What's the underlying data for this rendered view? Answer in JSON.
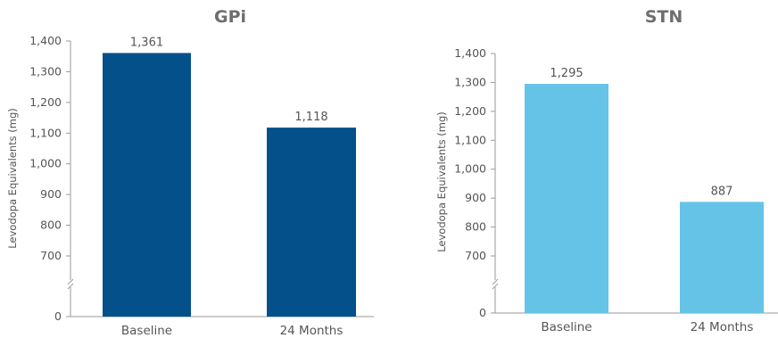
{
  "chart_data": [
    {
      "type": "bar",
      "title": "GPi",
      "ylabel": "Levodopa Equivalents (mg)",
      "categories": [
        "Baseline",
        "24 Months"
      ],
      "values": [
        1361,
        1118
      ],
      "value_labels": [
        "1,361",
        "1,118"
      ],
      "ylim": [
        600,
        1400
      ],
      "yticks": [
        700,
        800,
        900,
        1000,
        1100,
        1200,
        1300,
        1400
      ],
      "ytick_labels": [
        "700",
        "800",
        "900",
        "1,000",
        "1,100",
        "1,200",
        "1,300",
        "1,400"
      ],
      "axis_break": true,
      "zero_label": "0",
      "bar_color": "#03508b",
      "grid": false
    },
    {
      "type": "bar",
      "title": "STN",
      "ylabel": "Levodopa Equivalents (mg)",
      "categories": [
        "Baseline",
        "24 Months"
      ],
      "values": [
        1295,
        887
      ],
      "value_labels": [
        "1,295",
        "887"
      ],
      "ylim": [
        600,
        1400
      ],
      "yticks": [
        700,
        800,
        900,
        1000,
        1100,
        1200,
        1300,
        1400
      ],
      "ytick_labels": [
        "700",
        "800",
        "900",
        "1,000",
        "1,100",
        "1,200",
        "1,300",
        "1,400"
      ],
      "axis_break": true,
      "zero_label": "0",
      "bar_color": "#65c3e8",
      "grid": false
    }
  ]
}
